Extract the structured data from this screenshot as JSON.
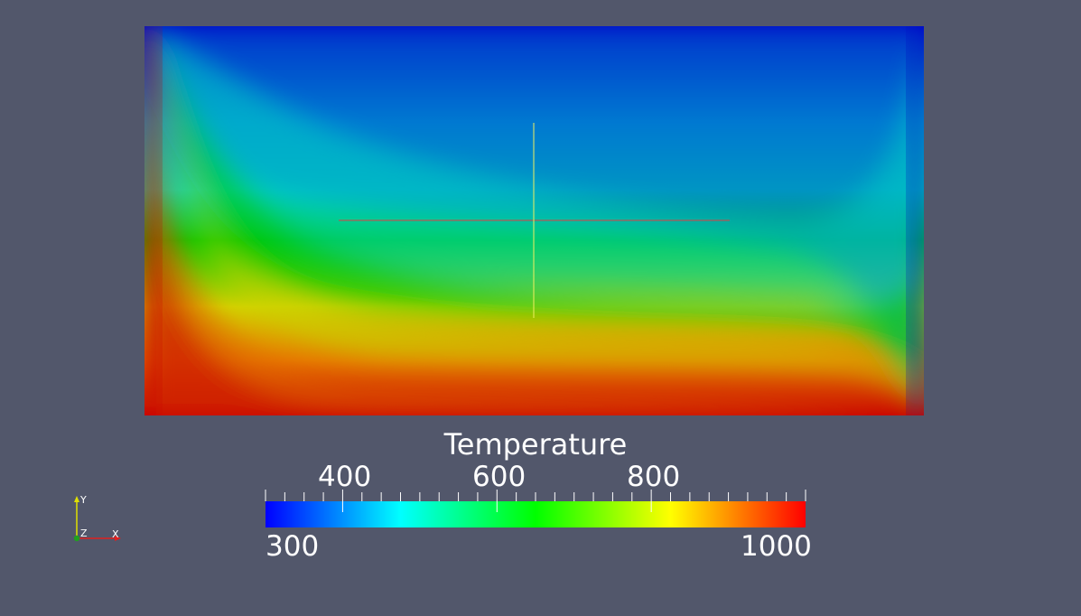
{
  "scalar_bar": {
    "title": "Temperature",
    "range": [
      300,
      1000
    ],
    "range_min_label": "300",
    "range_max_label": "1000",
    "tick_labels": [
      "400",
      "600",
      "800"
    ],
    "tick_values": [
      400,
      600,
      800
    ],
    "colormap": [
      "#0000ff",
      "#00ffff",
      "#00ff00",
      "#ffff00",
      "#ff0000"
    ]
  },
  "orientation_axes": {
    "x_label": "X",
    "y_label": "Y",
    "z_label": "Z",
    "x_color": "#e02020",
    "y_color": "#e0e000",
    "z_color": "#20a020"
  },
  "colors": {
    "background": "#52576b",
    "cold": "#0000c0",
    "hot": "#c00000"
  }
}
